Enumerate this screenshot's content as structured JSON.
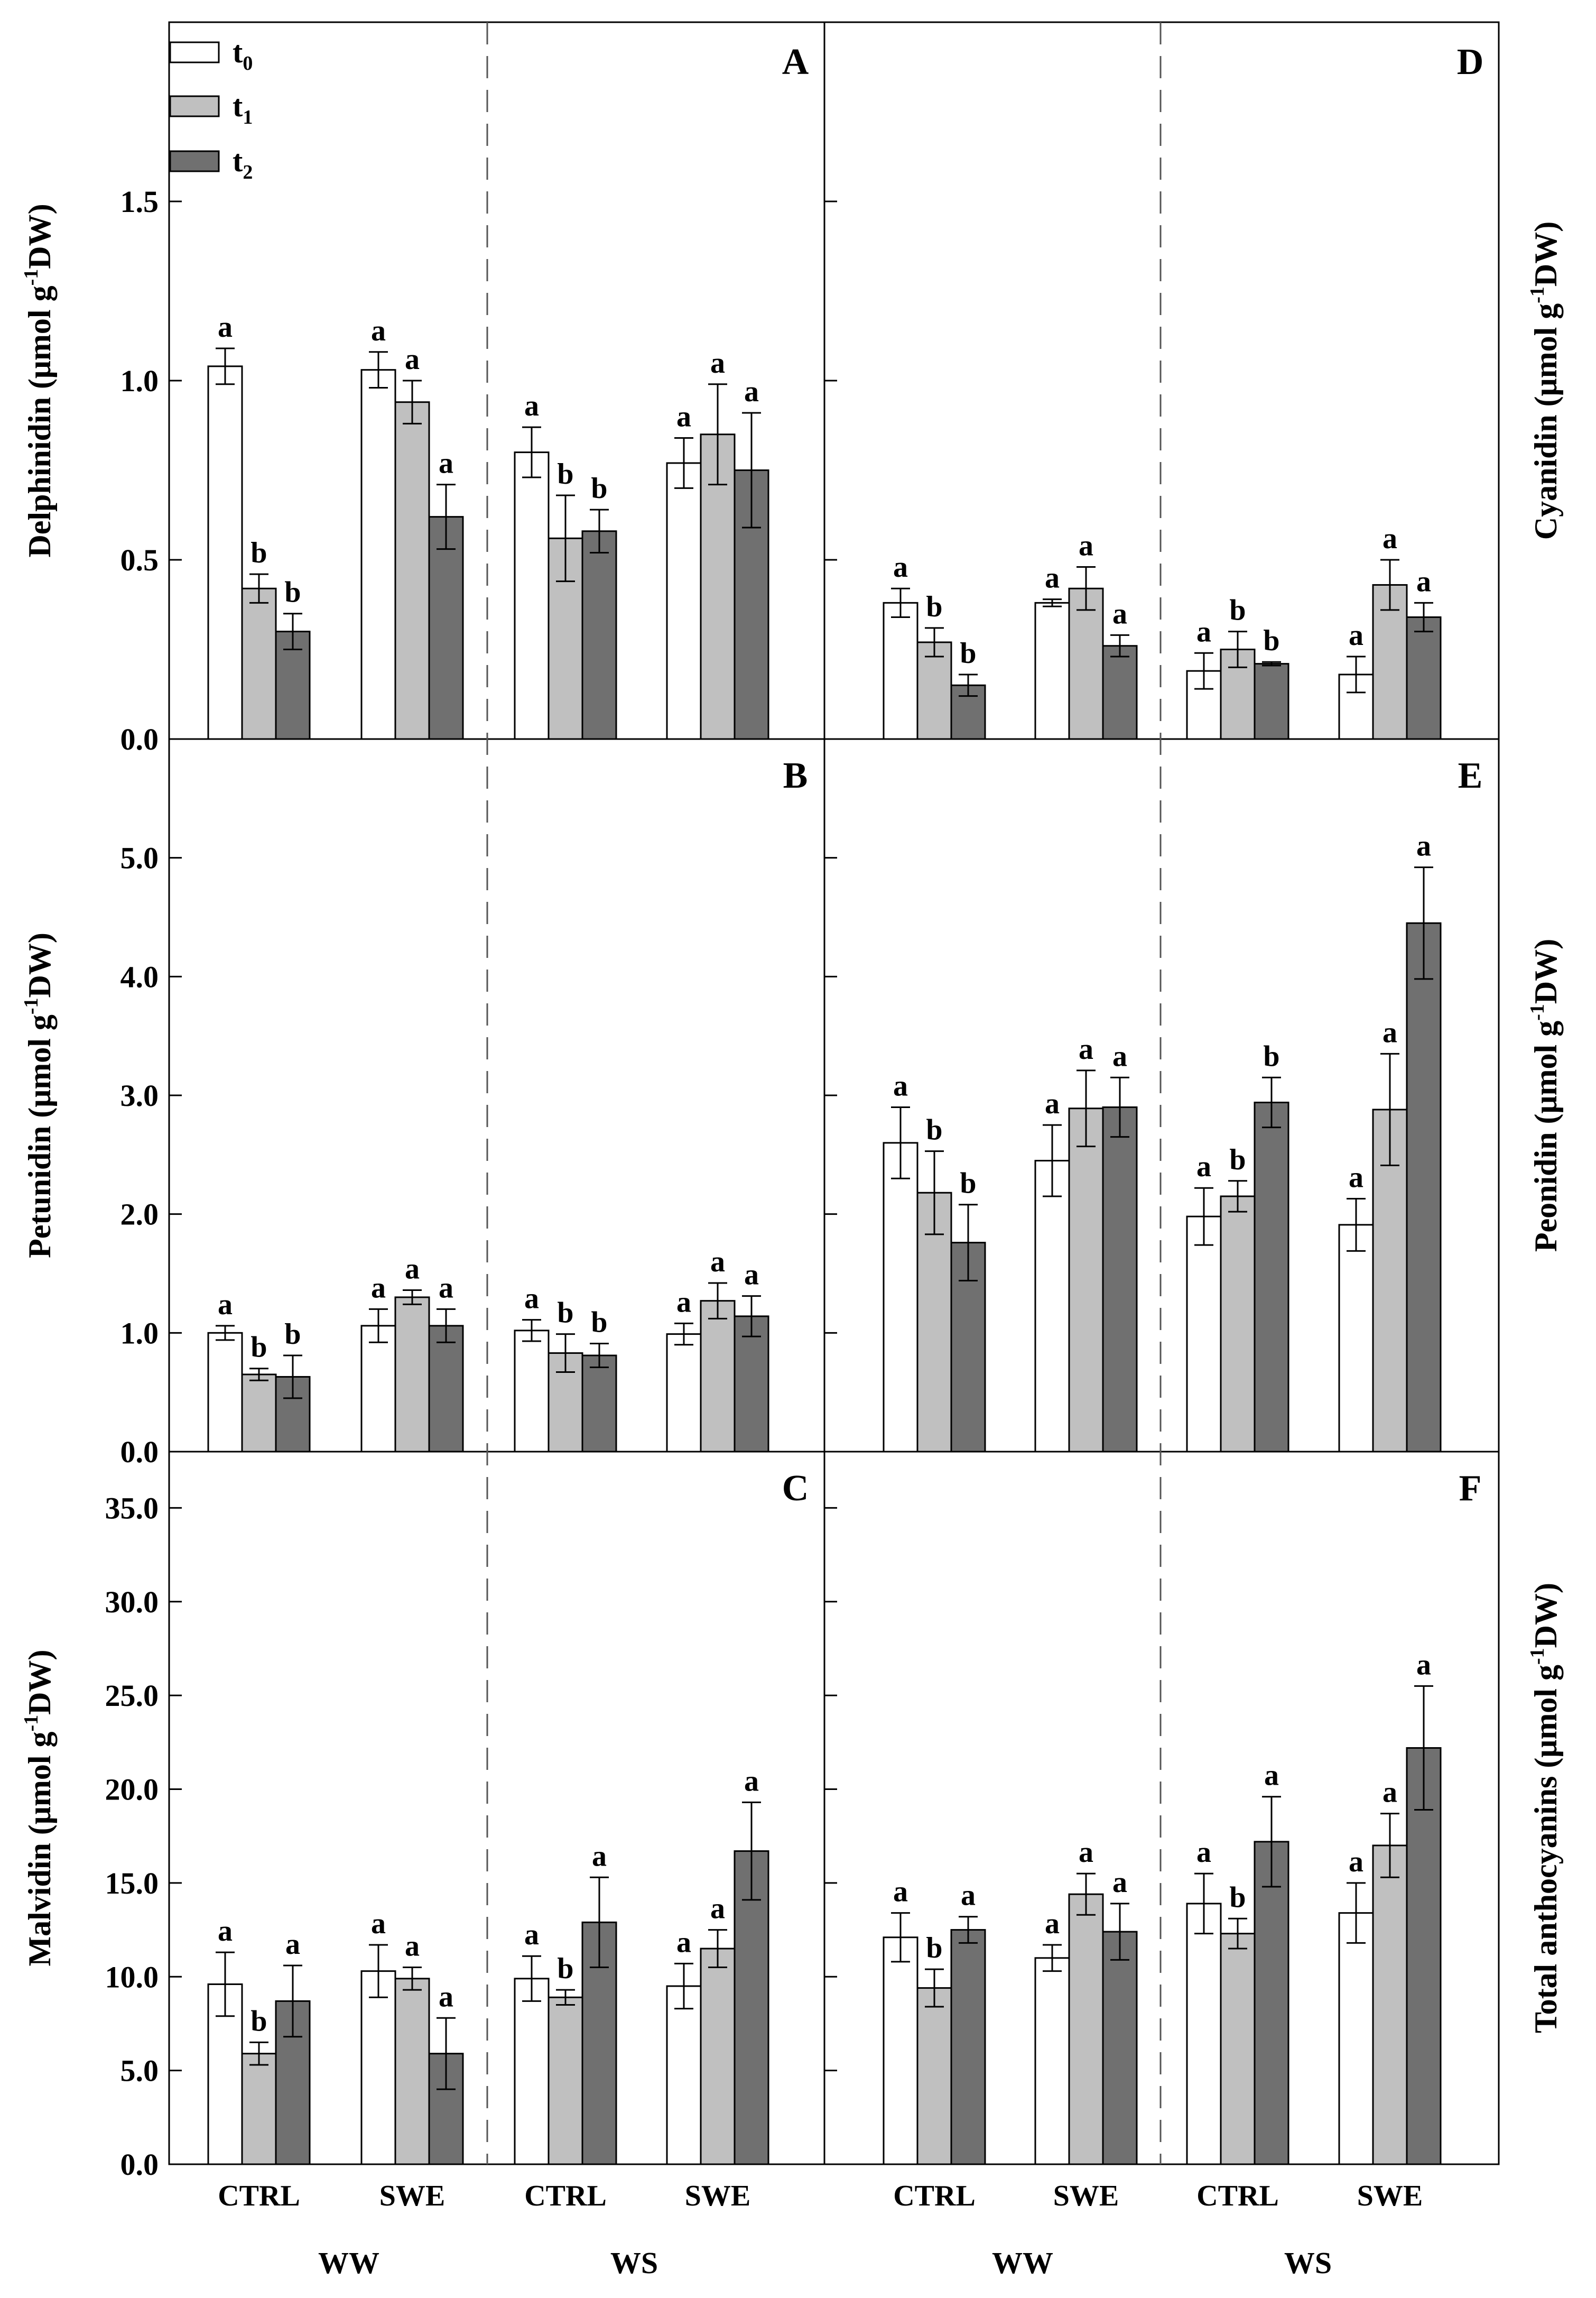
{
  "chart_data": {
    "type": "bar",
    "treatments": [
      "CTRL",
      "SWE",
      "CTRL",
      "SWE"
    ],
    "water_regimes": [
      "WW",
      "WS"
    ],
    "legend": [
      {
        "label": "t",
        "sub": "0",
        "fill": "#ffffff"
      },
      {
        "label": "t",
        "sub": "1",
        "fill": "#c0c0c0"
      },
      {
        "label": "t",
        "sub": "2",
        "fill": "#707070"
      }
    ],
    "axis_titles": {
      "delphinidin": [
        "Delphinidin (μmol g",
        "-1",
        "DW)"
      ],
      "petunidin": [
        "Petunidin (μmol g",
        "-1",
        "DW)"
      ],
      "malvidin": [
        "Malvidin (μmol g",
        "-1",
        "DW)"
      ],
      "cyanidin": [
        "Cyanidin (μmol g",
        "-1",
        "DW)"
      ],
      "peonidin": [
        "Peonidin (μmol g",
        "-1",
        "DW)"
      ],
      "total": [
        "Total anthocyanins (μmol g",
        "-1",
        "DW)"
      ]
    },
    "panels": [
      {
        "id": "A",
        "ylim": [
          0,
          2.0
        ],
        "ticks": [
          "0.0",
          "0.5",
          "1.0",
          "1.5"
        ],
        "tick_values": [
          0,
          0.5,
          1.0,
          1.5
        ],
        "groups": [
          {
            "treatment": "CTRL",
            "regime": "WW",
            "values": [
              1.04,
              0.42,
              0.3
            ],
            "errors": [
              0.05,
              0.04,
              0.05
            ],
            "sig": [
              "a",
              "b",
              "b"
            ]
          },
          {
            "treatment": "SWE",
            "regime": "WW",
            "values": [
              1.03,
              0.94,
              0.62
            ],
            "errors": [
              0.05,
              0.06,
              0.09
            ],
            "sig": [
              "a",
              "a",
              "a"
            ]
          },
          {
            "treatment": "CTRL",
            "regime": "WS",
            "values": [
              0.8,
              0.56,
              0.58
            ],
            "errors": [
              0.07,
              0.12,
              0.06
            ],
            "sig": [
              "a",
              "b",
              "b"
            ]
          },
          {
            "treatment": "SWE",
            "regime": "WS",
            "values": [
              0.77,
              0.85,
              0.75
            ],
            "errors": [
              0.07,
              0.14,
              0.16
            ],
            "sig": [
              "a",
              "a",
              "a"
            ]
          }
        ]
      },
      {
        "id": "B",
        "ylim": [
          0,
          6.0
        ],
        "ticks": [
          "0.0",
          "1.0",
          "2.0",
          "3.0",
          "4.0",
          "5.0"
        ],
        "tick_values": [
          0,
          1,
          2,
          3,
          4,
          5
        ],
        "groups": [
          {
            "treatment": "CTRL",
            "regime": "WW",
            "values": [
              1.0,
              0.65,
              0.63
            ],
            "errors": [
              0.06,
              0.05,
              0.18
            ],
            "sig": [
              "a",
              "b",
              "b"
            ]
          },
          {
            "treatment": "SWE",
            "regime": "WW",
            "values": [
              1.06,
              1.3,
              1.06
            ],
            "errors": [
              0.14,
              0.06,
              0.14
            ],
            "sig": [
              "a",
              "a",
              "a"
            ]
          },
          {
            "treatment": "CTRL",
            "regime": "WS",
            "values": [
              1.02,
              0.83,
              0.81
            ],
            "errors": [
              0.09,
              0.16,
              0.1
            ],
            "sig": [
              "a",
              "b",
              "b"
            ]
          },
          {
            "treatment": "SWE",
            "regime": "WS",
            "values": [
              0.99,
              1.27,
              1.14
            ],
            "errors": [
              0.09,
              0.15,
              0.17
            ],
            "sig": [
              "a",
              "a",
              "a"
            ]
          }
        ]
      },
      {
        "id": "C",
        "ylim": [
          0,
          38.0
        ],
        "ticks": [
          "0.0",
          "5.0",
          "10.0",
          "15.0",
          "20.0",
          "25.0",
          "30.0",
          "35.0"
        ],
        "tick_values": [
          0,
          5,
          10,
          15,
          20,
          25,
          30,
          35
        ],
        "groups": [
          {
            "treatment": "CTRL",
            "regime": "WW",
            "values": [
              9.6,
              5.9,
              8.7
            ],
            "errors": [
              1.7,
              0.6,
              1.9
            ],
            "sig": [
              "a",
              "b",
              "a"
            ]
          },
          {
            "treatment": "SWE",
            "regime": "WW",
            "values": [
              10.3,
              9.9,
              5.9
            ],
            "errors": [
              1.4,
              0.6,
              1.9
            ],
            "sig": [
              "a",
              "a",
              "a"
            ]
          },
          {
            "treatment": "CTRL",
            "regime": "WS",
            "values": [
              9.9,
              8.9,
              12.9
            ],
            "errors": [
              1.2,
              0.4,
              2.4
            ],
            "sig": [
              "a",
              "b",
              "a"
            ]
          },
          {
            "treatment": "SWE",
            "regime": "WS",
            "values": [
              9.5,
              11.5,
              16.7
            ],
            "errors": [
              1.2,
              1.0,
              2.6
            ],
            "sig": [
              "a",
              "a",
              "a"
            ]
          }
        ]
      },
      {
        "id": "D",
        "ylim": [
          0,
          2.0
        ],
        "ticks": [],
        "tick_values": [],
        "groups": [
          {
            "treatment": "CTRL",
            "regime": "WW",
            "values": [
              0.38,
              0.27,
              0.15
            ],
            "errors": [
              0.04,
              0.04,
              0.03
            ],
            "sig": [
              "a",
              "b",
              "b"
            ]
          },
          {
            "treatment": "SWE",
            "regime": "WW",
            "values": [
              0.38,
              0.42,
              0.26
            ],
            "errors": [
              0.01,
              0.06,
              0.03
            ],
            "sig": [
              "a",
              "a",
              "a"
            ]
          },
          {
            "treatment": "CTRL",
            "regime": "WS",
            "values": [
              0.19,
              0.25,
              0.21
            ],
            "errors": [
              0.05,
              0.05,
              0.005
            ],
            "sig": [
              "a",
              "b",
              "b"
            ]
          },
          {
            "treatment": "SWE",
            "regime": "WS",
            "values": [
              0.18,
              0.43,
              0.34
            ],
            "errors": [
              0.05,
              0.07,
              0.04
            ],
            "sig": [
              "a",
              "a",
              "a"
            ]
          }
        ]
      },
      {
        "id": "E",
        "ylim": [
          0,
          6.0
        ],
        "ticks": [],
        "tick_values": [],
        "groups": [
          {
            "treatment": "CTRL",
            "regime": "WW",
            "values": [
              2.6,
              2.18,
              1.76
            ],
            "errors": [
              0.3,
              0.35,
              0.32
            ],
            "sig": [
              "a",
              "b",
              "b"
            ]
          },
          {
            "treatment": "SWE",
            "regime": "WW",
            "values": [
              2.45,
              2.89,
              2.9
            ],
            "errors": [
              0.3,
              0.32,
              0.25
            ],
            "sig": [
              "a",
              "a",
              "a"
            ]
          },
          {
            "treatment": "CTRL",
            "regime": "WS",
            "values": [
              1.98,
              2.15,
              2.94
            ],
            "errors": [
              0.24,
              0.13,
              0.21
            ],
            "sig": [
              "a",
              "b",
              "b"
            ]
          },
          {
            "treatment": "SWE",
            "regime": "WS",
            "values": [
              1.91,
              2.88,
              4.45
            ],
            "errors": [
              0.22,
              0.47,
              0.47
            ],
            "sig": [
              "a",
              "a",
              "a"
            ]
          }
        ]
      },
      {
        "id": "F",
        "ylim": [
          0,
          38.0
        ],
        "ticks": [],
        "tick_values": [],
        "groups": [
          {
            "treatment": "CTRL",
            "regime": "WW",
            "values": [
              12.1,
              9.4,
              12.5
            ],
            "errors": [
              1.3,
              1.0,
              0.7
            ],
            "sig": [
              "a",
              "b",
              "a"
            ]
          },
          {
            "treatment": "SWE",
            "regime": "WW",
            "values": [
              11.0,
              14.4,
              12.4
            ],
            "errors": [
              0.7,
              1.1,
              1.5
            ],
            "sig": [
              "a",
              "a",
              "a"
            ]
          },
          {
            "treatment": "CTRL",
            "regime": "WS",
            "values": [
              13.9,
              12.3,
              17.2
            ],
            "errors": [
              1.6,
              0.8,
              2.4
            ],
            "sig": [
              "a",
              "b",
              "a"
            ]
          },
          {
            "treatment": "SWE",
            "regime": "WS",
            "values": [
              13.4,
              17.0,
              22.2
            ],
            "errors": [
              1.6,
              1.7,
              3.3
            ],
            "sig": [
              "a",
              "a",
              "a"
            ]
          }
        ]
      }
    ]
  }
}
